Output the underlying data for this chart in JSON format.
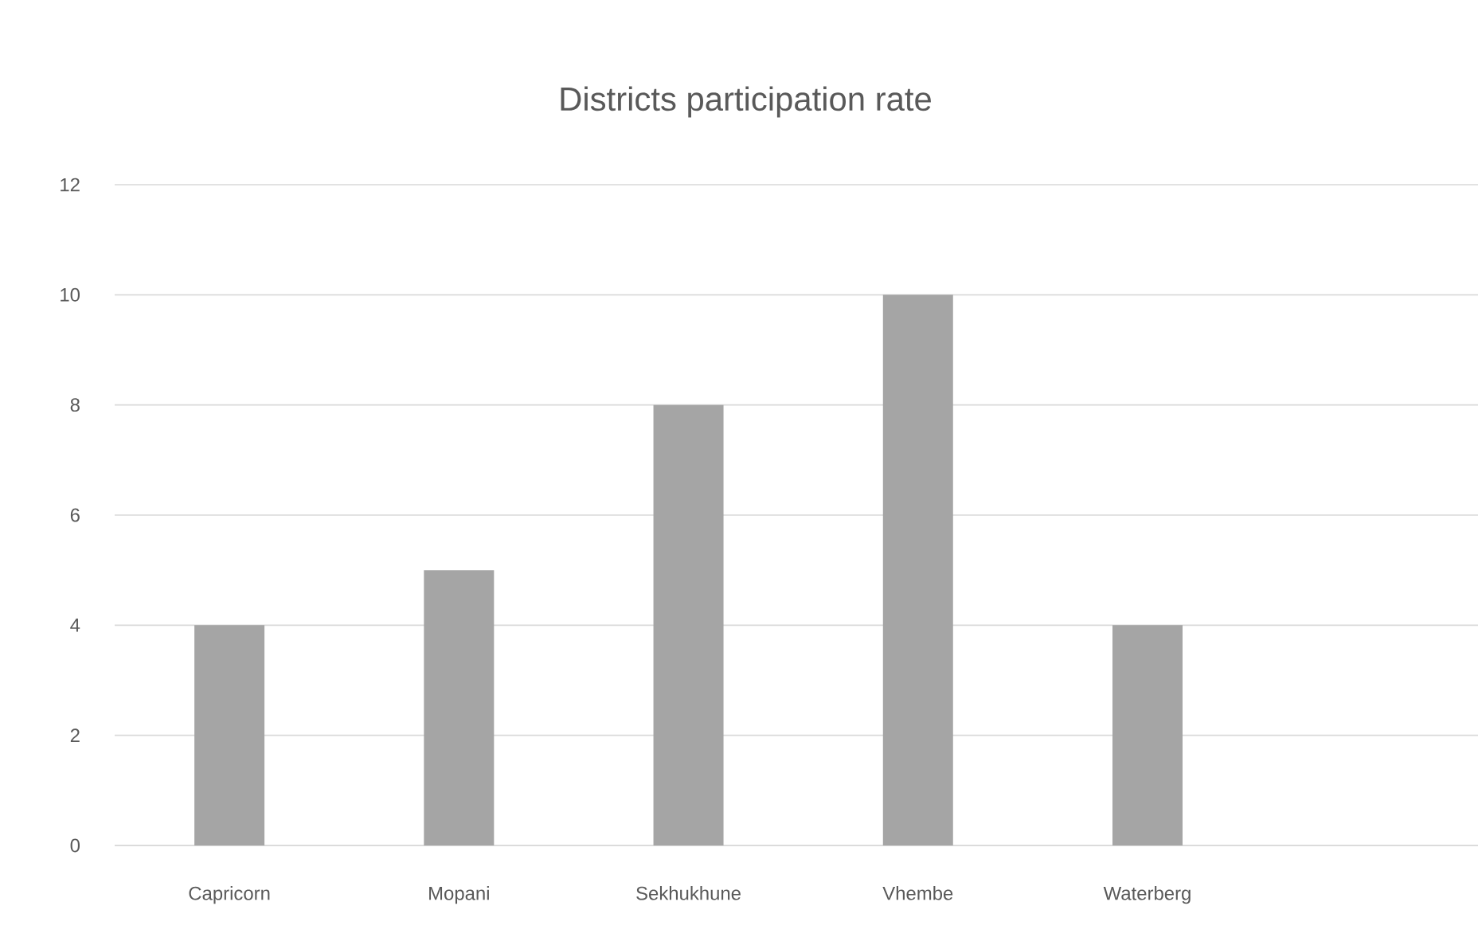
{
  "chart_data": {
    "type": "bar",
    "title": "Districts participation rate",
    "categories": [
      "Capricorn",
      "Mopani",
      "Sekhukhune",
      "Vhembe",
      "Waterberg"
    ],
    "values": [
      4,
      5,
      8,
      10,
      4
    ],
    "color": "#a5a5a5",
    "ylim": [
      0,
      12
    ],
    "yticks": [
      0,
      2,
      4,
      6,
      8,
      10,
      12
    ],
    "grid": "y"
  }
}
